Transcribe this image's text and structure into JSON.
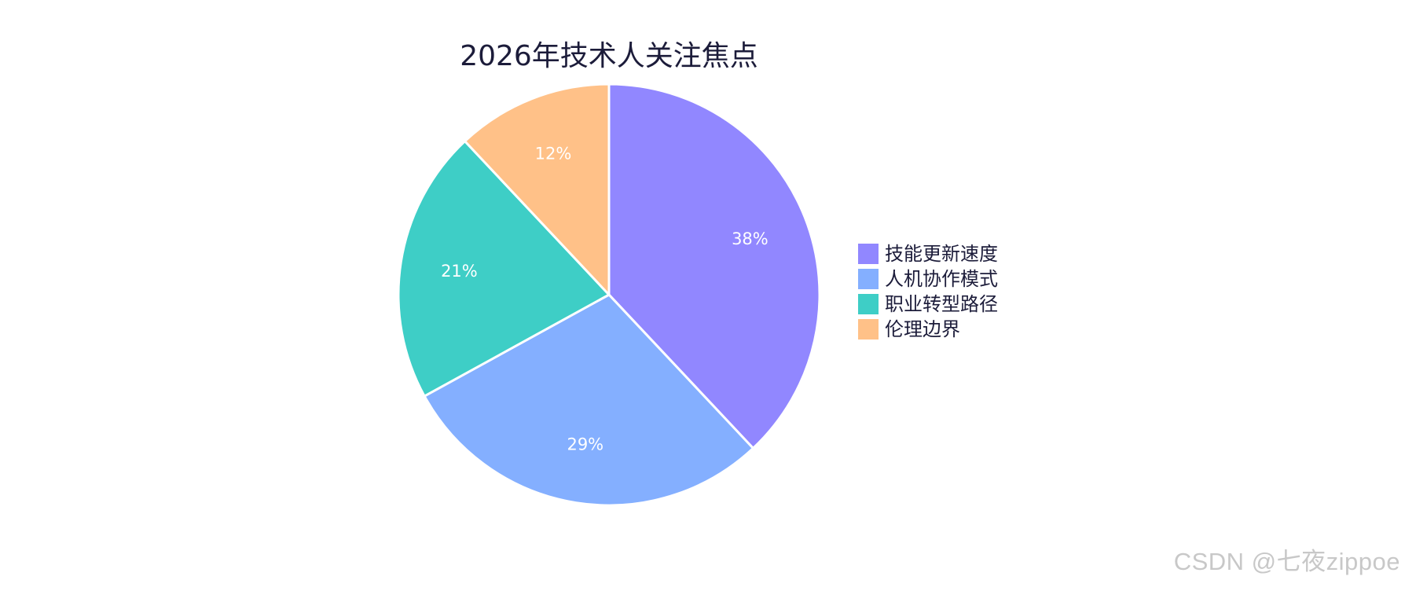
{
  "chart_data": {
    "type": "pie",
    "title": "2026年技术人关注焦点",
    "categories": [
      "技能更新速度",
      "人机协作模式",
      "职业转型路径",
      "伦理边界"
    ],
    "values": [
      38,
      29,
      21,
      12
    ],
    "labels": [
      "38%",
      "29%",
      "21%",
      "12%"
    ],
    "colors": [
      "#9187FF",
      "#84AFFF",
      "#3ECEC6",
      "#FFC188"
    ],
    "legend_position": "right",
    "start_angle": "12 o'clock",
    "direction": "clockwise"
  },
  "watermark": "CSDN @七夜zippoe"
}
